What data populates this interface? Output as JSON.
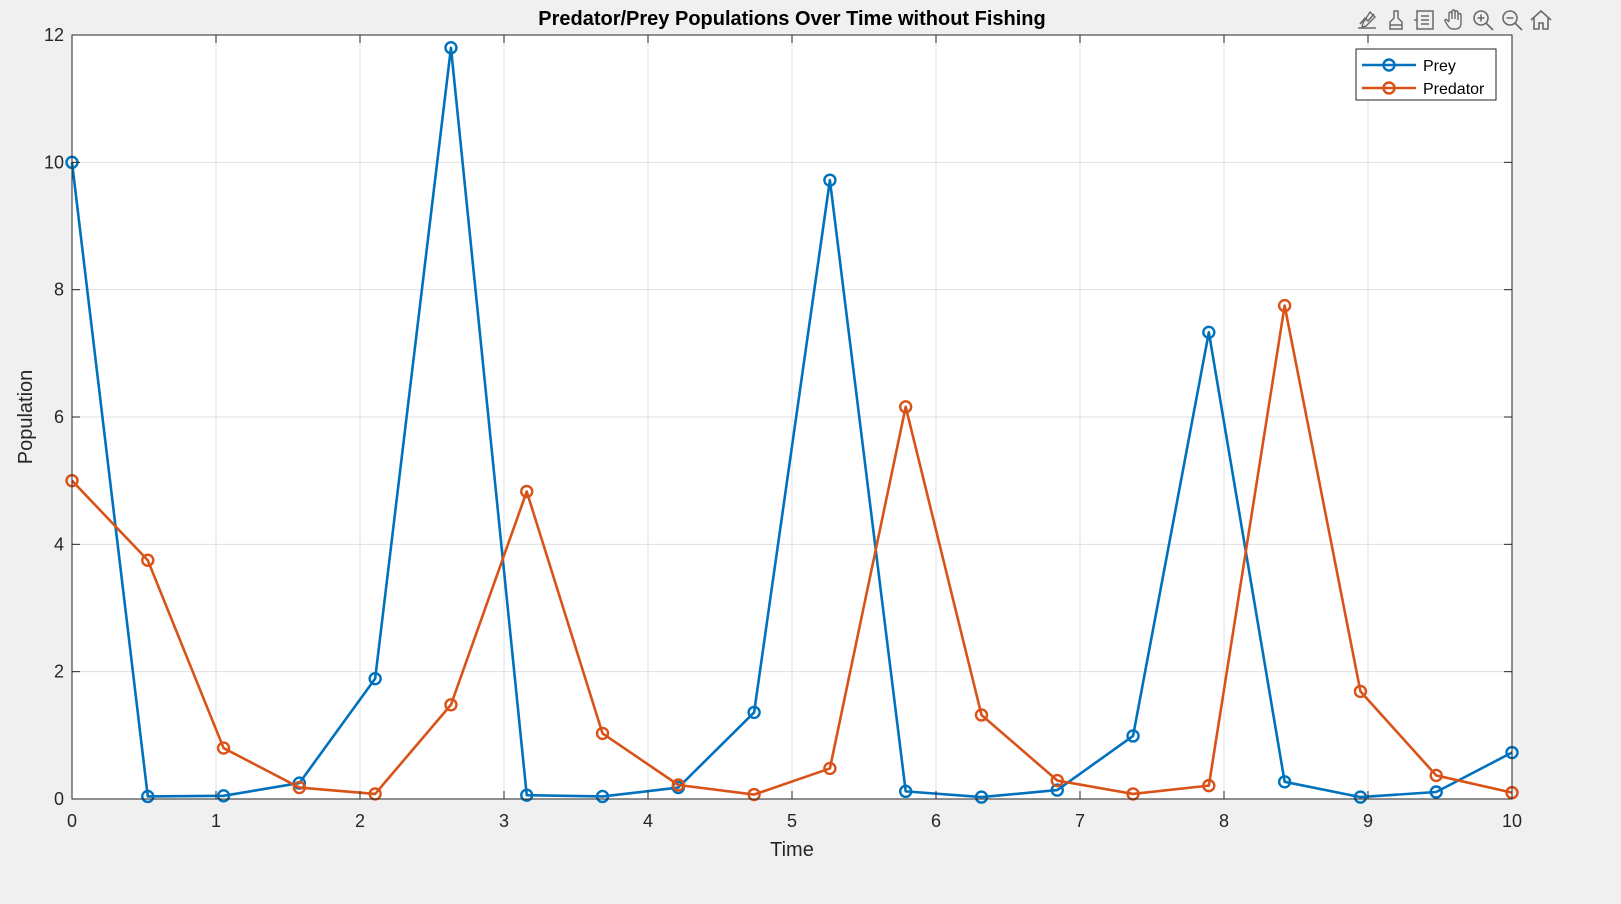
{
  "toolbar": {
    "icons": [
      "edit-plot-icon",
      "brush-icon",
      "data-tips-icon",
      "pan-icon",
      "zoom-in-icon",
      "zoom-out-icon",
      "home-icon"
    ],
    "icon_color": "#5a5a5a"
  },
  "chart_data": {
    "type": "line",
    "title": "Predator/Prey Populations Over Time without Fishing",
    "xlabel": "Time",
    "ylabel": "Population",
    "xlim": [
      0,
      10
    ],
    "ylim": [
      0,
      12
    ],
    "xticks": [
      0,
      1,
      2,
      3,
      4,
      5,
      6,
      7,
      8,
      9,
      10
    ],
    "yticks": [
      0,
      2,
      4,
      6,
      8,
      10,
      12
    ],
    "grid": true,
    "legend_position": "top-right",
    "x": [
      0,
      0.5263,
      1.0526,
      1.5789,
      2.1053,
      2.6316,
      3.1579,
      3.6842,
      4.2105,
      4.7368,
      5.2632,
      5.7895,
      6.3158,
      6.8421,
      7.3684,
      7.8947,
      8.4211,
      8.9474,
      9.4737,
      10
    ],
    "series": [
      {
        "name": "Prey",
        "color": "#0072bd",
        "marker": "circle",
        "values": [
          10.0,
          0.04,
          0.05,
          0.25,
          1.89,
          11.8,
          0.06,
          0.04,
          0.18,
          1.36,
          9.72,
          0.12,
          0.03,
          0.14,
          0.99,
          7.33,
          0.27,
          0.03,
          0.11,
          0.73
        ]
      },
      {
        "name": "Predator",
        "color": "#d95319",
        "marker": "circle",
        "values": [
          5.0,
          3.75,
          0.8,
          0.18,
          0.08,
          1.48,
          4.83,
          1.03,
          0.22,
          0.07,
          0.48,
          6.16,
          1.32,
          0.29,
          0.08,
          0.21,
          7.75,
          1.69,
          0.37,
          0.1
        ]
      }
    ]
  }
}
